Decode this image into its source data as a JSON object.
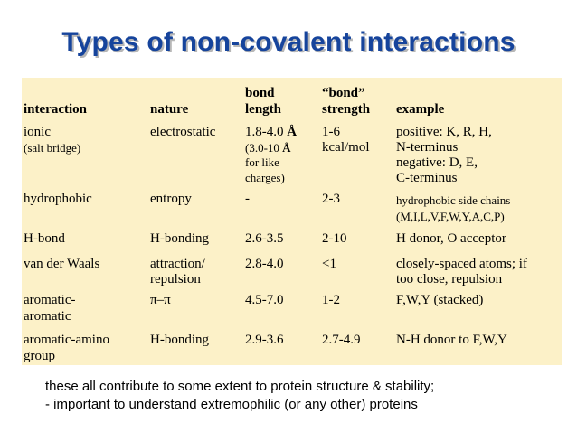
{
  "title": "Types of non-covalent interactions",
  "table": {
    "headers": {
      "interaction": "interaction",
      "nature": "nature",
      "bond_length": [
        "bond",
        "length"
      ],
      "bond_strength": [
        "“bond”",
        "strength"
      ],
      "example": "example"
    },
    "rows": [
      {
        "interaction": [
          "ionic",
          "(salt bridge)"
        ],
        "nature": "electrostatic",
        "length_main": "1.8-4.0",
        "length_unit": "Å",
        "length_note": [
          "(3.0-10",
          "Å",
          "for like",
          "charges)"
        ],
        "strength": [
          "1-6",
          "kcal/mol"
        ],
        "example": [
          "positive: K, R, H,",
          "N-terminus",
          "negative: D, E,",
          "C-terminus"
        ]
      },
      {
        "interaction": "hydrophobic",
        "nature": "entropy",
        "length": "-",
        "strength": "2-3",
        "example": [
          "hydrophobic side chains",
          "(M,I,L,V,F,W,Y,A,C,P)"
        ]
      },
      {
        "interaction": "H-bond",
        "nature": "H-bonding",
        "length": "2.6-3.5",
        "strength": "2-10",
        "example": "H donor, O acceptor"
      },
      {
        "interaction": "van der Waals",
        "nature": [
          "attraction/",
          "repulsion"
        ],
        "length": "2.8-4.0",
        "strength": "<1",
        "example": [
          "closely-spaced atoms; if",
          "too close, repulsion"
        ]
      },
      {
        "interaction": [
          "aromatic-",
          "aromatic"
        ],
        "nature": "π–π",
        "length": "4.5-7.0",
        "strength": "1-2",
        "example": "F,W,Y (stacked)"
      },
      {
        "interaction": [
          "aromatic-amino",
          "group"
        ],
        "nature": "H-bonding",
        "length": "2.9-3.6",
        "strength": "2.7-4.9",
        "example": "N-H donor to F,W,Y"
      }
    ]
  },
  "notes": [
    "these all contribute to some extent to protein structure & stability;",
    "- important to understand extremophilic (or any other) proteins"
  ],
  "colors": {
    "title": "#16449c",
    "title_shadow": "#b7b7b7",
    "table_background": "#fcf1c8",
    "text": "#000000"
  }
}
